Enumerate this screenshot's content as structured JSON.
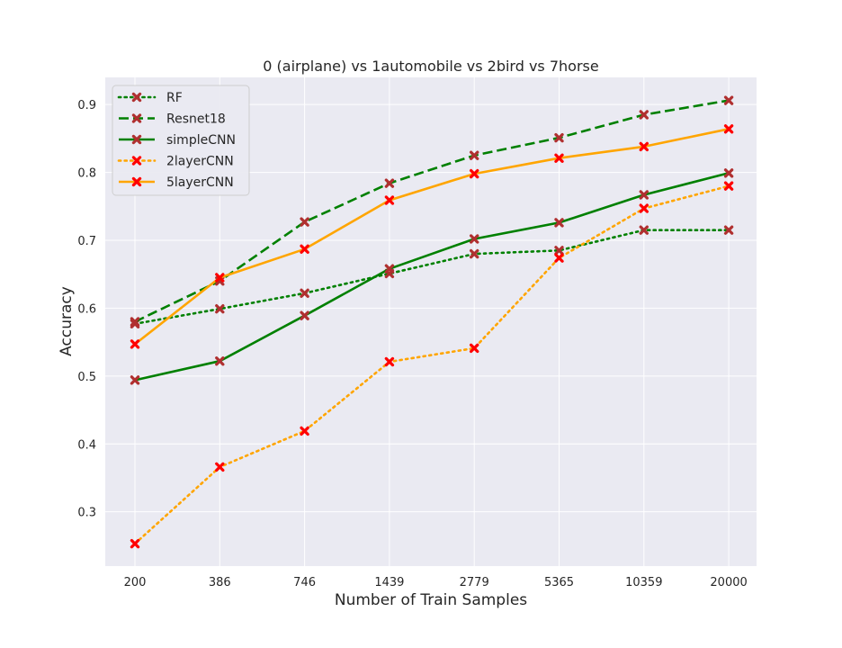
{
  "chart_data": {
    "type": "line",
    "title": "0 (airplane)  vs 1automobile vs 2bird vs 7horse",
    "xlabel": "Number of Train Samples",
    "ylabel": "Accuracy",
    "categories": [
      "200",
      "386",
      "746",
      "1439",
      "2779",
      "5365",
      "10359",
      "20000"
    ],
    "ylim": [
      0.22,
      0.94
    ],
    "yticks": [
      0.3,
      0.4,
      0.5,
      0.6,
      0.7,
      0.8,
      0.9
    ],
    "ytick_labels": [
      "0.3",
      "0.4",
      "0.5",
      "0.6",
      "0.7",
      "0.8",
      "0.9"
    ],
    "grid": true,
    "legend_position": "top-left",
    "background_color": "#eaeaf2",
    "series": [
      {
        "name": "RF",
        "color": "#008000",
        "dash": "dotted",
        "marker_color": "#b03030",
        "values": [
          0.577,
          0.599,
          0.622,
          0.651,
          0.68,
          0.685,
          0.715,
          0.715
        ]
      },
      {
        "name": "Resnet18",
        "color": "#008000",
        "dash": "dashed",
        "marker_color": "#b03030",
        "values": [
          0.58,
          0.64,
          0.727,
          0.784,
          0.825,
          0.851,
          0.885,
          0.906
        ]
      },
      {
        "name": "simpleCNN",
        "color": "#008000",
        "dash": "solid",
        "marker_color": "#b03030",
        "values": [
          0.494,
          0.522,
          0.589,
          0.658,
          0.702,
          0.726,
          0.767,
          0.799
        ]
      },
      {
        "name": "2layerCNN",
        "color": "#ffa500",
        "dash": "dotted",
        "marker_color": "#ff0000",
        "values": [
          0.253,
          0.366,
          0.419,
          0.521,
          0.541,
          0.674,
          0.747,
          0.78
        ]
      },
      {
        "name": "5layerCNN",
        "color": "#ffa500",
        "dash": "solid",
        "marker_color": "#ff0000",
        "values": [
          0.547,
          0.645,
          0.687,
          0.759,
          0.798,
          0.821,
          0.838,
          0.864
        ]
      }
    ]
  }
}
